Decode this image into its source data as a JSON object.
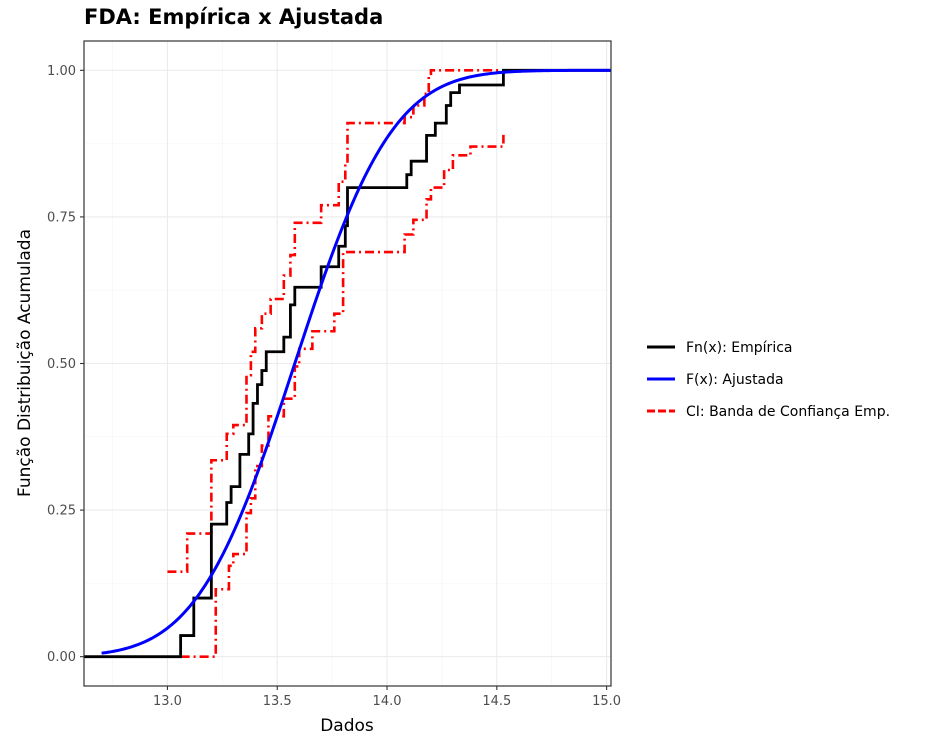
{
  "chart_data": {
    "type": "line",
    "title": "FDA: Empírica x Ajustada",
    "xlabel": "Dados",
    "ylabel": "Função Distribuição Acumulada",
    "xlim": [
      12.62,
      15.02
    ],
    "ylim": [
      -0.05,
      1.05
    ],
    "x_ticks": [
      13.0,
      13.5,
      14.0,
      14.5,
      15.0
    ],
    "x_tick_labels": [
      "13.0",
      "13.5",
      "14.0",
      "14.5",
      "15.0"
    ],
    "y_ticks": [
      0.0,
      0.25,
      0.5,
      0.75,
      1.0
    ],
    "y_tick_labels": [
      "0.00",
      "0.25",
      "0.50",
      "0.75",
      "1.00"
    ],
    "grid": true,
    "legend_position": "right",
    "colors": {
      "empirical": "#000000",
      "fitted": "#0000ff",
      "band": "#ff0000"
    },
    "series": [
      {
        "name": "Fn(x): Empírica",
        "kind": "step",
        "x": [
          12.62,
          13.06,
          13.12,
          13.2,
          13.27,
          13.29,
          13.33,
          13.37,
          13.39,
          13.41,
          13.43,
          13.45,
          13.48,
          13.53,
          13.56,
          13.58,
          13.61,
          13.7,
          13.78,
          13.81,
          13.82,
          14.09,
          14.11,
          14.18,
          14.22,
          14.27,
          14.29,
          14.33,
          14.38,
          14.53,
          15.02
        ],
        "y": [
          0.0,
          0.036,
          0.1,
          0.226,
          0.263,
          0.29,
          0.345,
          0.38,
          0.432,
          0.464,
          0.488,
          0.52,
          0.52,
          0.545,
          0.6,
          0.63,
          0.63,
          0.665,
          0.7,
          0.735,
          0.8,
          0.822,
          0.845,
          0.889,
          0.91,
          0.94,
          0.962,
          0.975,
          0.975,
          1.0,
          1.0
        ]
      },
      {
        "name": "F(x): Ajustada",
        "kind": "normal_cdf",
        "x_range": [
          12.7,
          15.02
        ],
        "mean": 13.58,
        "sd": 0.35
      },
      {
        "name": "CI: Banda de Confiança Emp.",
        "kind": "band",
        "upper_x": [
          13.0,
          13.09,
          13.13,
          13.2,
          13.27,
          13.3,
          13.36,
          13.38,
          13.4,
          13.43,
          13.47,
          13.53,
          13.56,
          13.58,
          13.61,
          13.7,
          13.78,
          13.81,
          13.82,
          14.08,
          14.12,
          14.17,
          14.19,
          14.2,
          14.26,
          14.27,
          14.53
        ],
        "upper_y": [
          0.145,
          0.21,
          0.21,
          0.335,
          0.38,
          0.395,
          0.48,
          0.52,
          0.56,
          0.585,
          0.61,
          0.65,
          0.685,
          0.74,
          0.74,
          0.77,
          0.81,
          0.84,
          0.91,
          0.92,
          0.94,
          0.96,
          0.99,
          1.0,
          1.0,
          1.0,
          1.0
        ],
        "lower_x": [
          13.06,
          13.2,
          13.22,
          13.28,
          13.3,
          13.36,
          13.38,
          13.4,
          13.43,
          13.46,
          13.53,
          13.58,
          13.6,
          13.66,
          13.76,
          13.8,
          13.82,
          14.08,
          14.12,
          14.18,
          14.2,
          14.26,
          14.3,
          14.38,
          14.53
        ],
        "lower_y": [
          0.0,
          0.0,
          0.115,
          0.155,
          0.175,
          0.245,
          0.27,
          0.325,
          0.36,
          0.41,
          0.44,
          0.495,
          0.525,
          0.555,
          0.585,
          0.69,
          0.69,
          0.72,
          0.745,
          0.78,
          0.8,
          0.83,
          0.855,
          0.87,
          0.89
        ]
      }
    ]
  }
}
